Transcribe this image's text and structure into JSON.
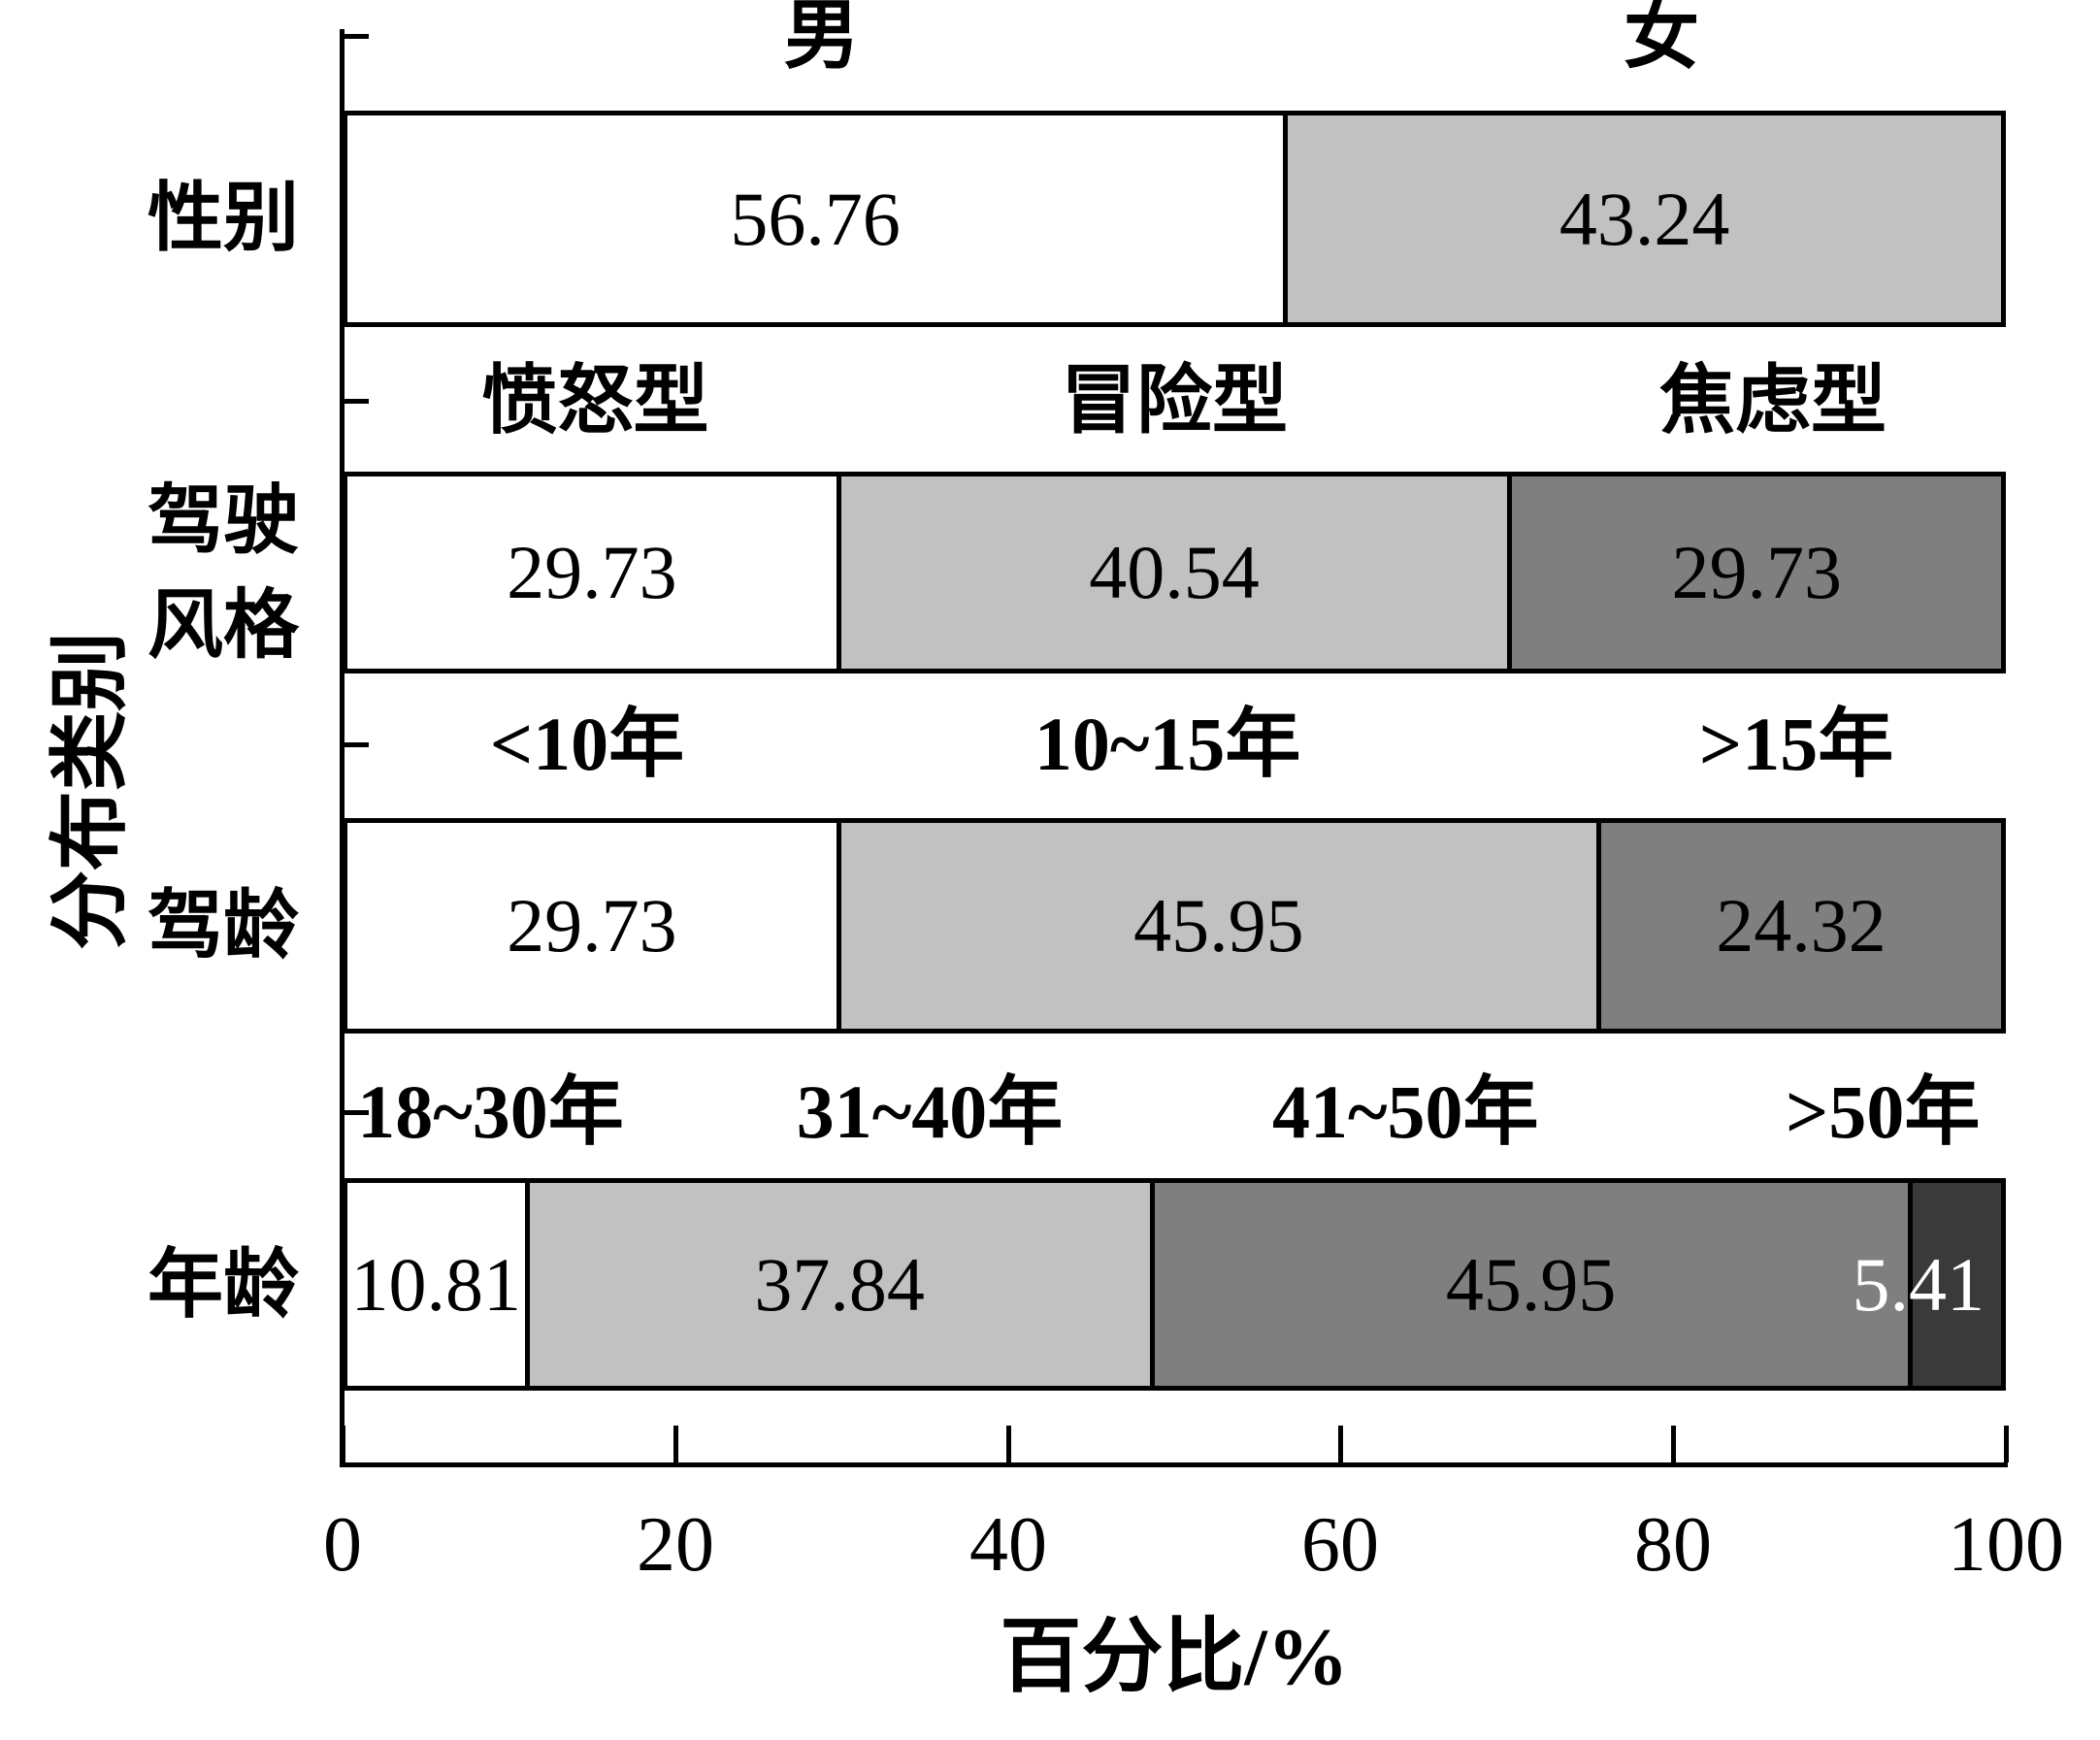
{
  "chart_data": {
    "type": "bar",
    "variant": "horizontal-stacked-percentage",
    "title": "",
    "xlabel": "百分比/%",
    "ylabel": "分布类别",
    "xlim": [
      0,
      100
    ],
    "x_ticks": [
      "0",
      "20",
      "40",
      "60",
      "80",
      "100"
    ],
    "x_tick_values": [
      0,
      20,
      40,
      60,
      80,
      100
    ],
    "grid": false,
    "legend_position": "labels-above-each-bar",
    "palette": [
      "#ffffff",
      "#c1c1c1",
      "#7f7f7f",
      "#3a3a3a"
    ],
    "border_color": "#000000",
    "rows": [
      {
        "category": "性别",
        "category_lines": [
          "性别"
        ],
        "segments": [
          {
            "label": "男",
            "value": 56.76,
            "fill": "#ffffff",
            "text_color": "#000000"
          },
          {
            "label": "女",
            "value": 43.24,
            "fill": "#c1c1c1",
            "text_color": "#000000"
          }
        ],
        "header_centers_pct": [
          28.8,
          79.3
        ]
      },
      {
        "category": "驾驶风格",
        "category_lines": [
          "驾驶",
          "风格"
        ],
        "segments": [
          {
            "label": "愤怒型",
            "value": 29.73,
            "fill": "#ffffff",
            "text_color": "#000000"
          },
          {
            "label": "冒险型",
            "value": 40.54,
            "fill": "#c1c1c1",
            "text_color": "#000000"
          },
          {
            "label": "焦虑型",
            "value": 29.73,
            "fill": "#7f7f7f",
            "text_color": "#000000"
          }
        ],
        "header_centers_pct": [
          15.2,
          50.0,
          86.0
        ]
      },
      {
        "category": "驾龄",
        "category_lines": [
          "驾龄"
        ],
        "segments": [
          {
            "label": "<10年",
            "value": 29.73,
            "fill": "#ffffff",
            "text_color": "#000000"
          },
          {
            "label": "10~15年",
            "value": 45.95,
            "fill": "#c1c1c1",
            "text_color": "#000000"
          },
          {
            "label": ">15年",
            "value": 24.32,
            "fill": "#7f7f7f",
            "text_color": "#000000"
          }
        ],
        "header_centers_pct": [
          14.7,
          49.6,
          87.4
        ]
      },
      {
        "category": "年龄",
        "category_lines": [
          "年龄"
        ],
        "segments": [
          {
            "label": "18~30年",
            "value": 10.81,
            "fill": "#ffffff",
            "text_color": "#000000"
          },
          {
            "label": "31~40年",
            "value": 37.84,
            "fill": "#c1c1c1",
            "text_color": "#000000"
          },
          {
            "label": "41~50年",
            "value": 45.95,
            "fill": "#7f7f7f",
            "text_color": "#000000"
          },
          {
            "label": ">50年",
            "value": 5.41,
            "fill": "#3a3a3a",
            "text_color": "#ffffff",
            "value_label_overlay": true,
            "overlay_center_pct": 95.0
          }
        ],
        "header_centers_pct": [
          8.9,
          35.3,
          63.9,
          92.6
        ]
      }
    ]
  }
}
